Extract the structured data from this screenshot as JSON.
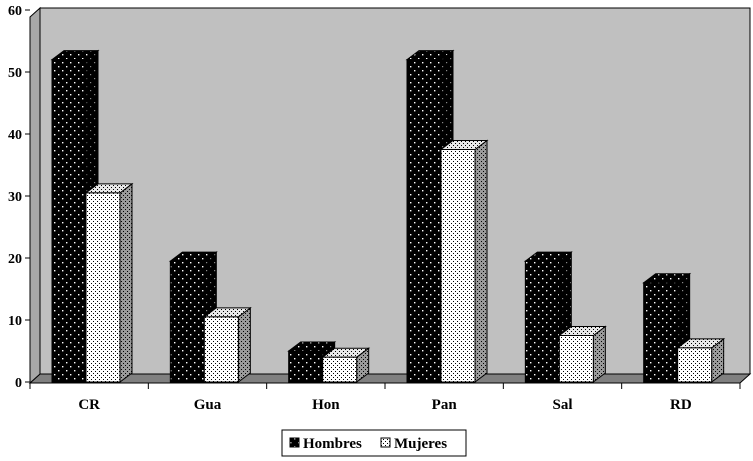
{
  "chart_data": {
    "type": "bar",
    "categories": [
      "CR",
      "Gua",
      "Hon",
      "Pan",
      "Sal",
      "RD"
    ],
    "series": [
      {
        "name": "Hombres",
        "values": [
          52,
          19.5,
          5,
          52,
          19.5,
          16
        ],
        "color": "#000000",
        "pattern": "white-dots-on-black"
      },
      {
        "name": "Mujeres",
        "values": [
          30.5,
          10.5,
          4,
          37.5,
          7.5,
          5.5
        ],
        "color": "#ffffff",
        "pattern": "black-dots-on-white"
      }
    ],
    "yticks": [
      0,
      10,
      20,
      30,
      40,
      50,
      60
    ],
    "ylim": [
      0,
      60
    ],
    "grid": false,
    "three_d": true,
    "plot_background": "#c0c0c0",
    "legend_position": "bottom-center"
  }
}
